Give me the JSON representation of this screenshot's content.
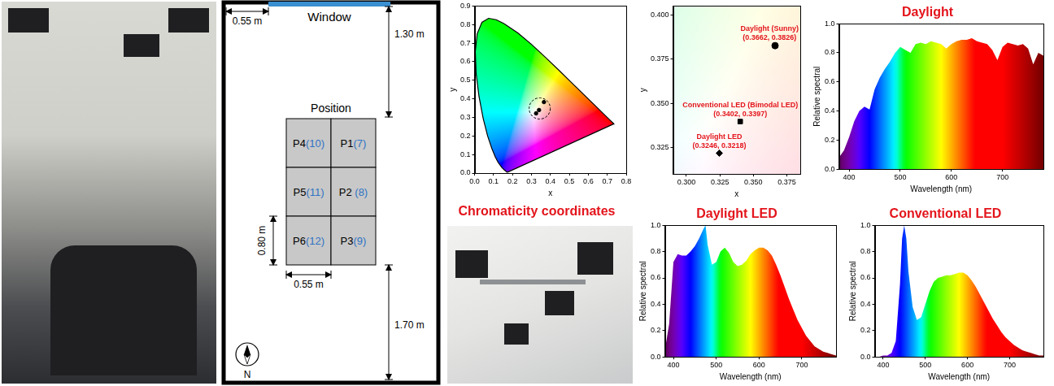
{
  "chart_data": [
    {
      "type": "scatter",
      "title": "Chromaticity coordinates",
      "xlabel": "x",
      "ylabel": "y",
      "xlim": [
        0,
        0.8
      ],
      "xticks": [
        {
          "value": 0,
          "label": "0.0"
        },
        0.1,
        0.2,
        0.3,
        0.4,
        0.5,
        0.6,
        0.7,
        0.8
      ],
      "ylim": [
        0,
        0.9
      ],
      "yticks": [
        {
          "value": 0,
          "label": "0.0"
        },
        0.1,
        0.2,
        0.3,
        0.4,
        0.5,
        0.6,
        0.7,
        0.8,
        0.9
      ],
      "grid": false,
      "series": [
        {
          "color": "#000000",
          "marker": "none",
          "line_style": "solid",
          "x": [
            0.1741,
            0.1714,
            0.1644,
            0.1566,
            0.144,
            0.1241,
            0.1096,
            0.0913,
            0.0687,
            0.0454,
            0.0235,
            0.0082,
            0.0039,
            0.0139,
            0.0389,
            0.0743,
            0.1142,
            0.1547,
            0.2296,
            0.3016,
            0.3731,
            0.4441,
            0.5125,
            0.5752,
            0.627,
            0.6915,
            0.719,
            0.732,
            0.7347
          ],
          "y": [
            0.005,
            0.0051,
            0.0109,
            0.0177,
            0.0297,
            0.0578,
            0.0868,
            0.1327,
            0.2007,
            0.295,
            0.4127,
            0.5384,
            0.6548,
            0.7502,
            0.812,
            0.8338,
            0.8262,
            0.8059,
            0.7543,
            0.6923,
            0.6245,
            0.5547,
            0.4866,
            0.4242,
            0.3725,
            0.3083,
            0.2809,
            0.268,
            0.2653
          ]
        },
        {
          "color": "#000000",
          "marker": "circle",
          "x": [
            0.3662,
            0.3402,
            0.3246
          ],
          "y": [
            0.3826,
            0.3397,
            0.3218
          ]
        }
      ]
    },
    {
      "type": "scatter",
      "xlabel": "x",
      "ylabel": "y",
      "xlim": [
        0.29,
        0.385
      ],
      "xticks": [
        {
          "value": 0.3,
          "label": "0.300"
        },
        0.325,
        {
          "value": 0.35,
          "label": "0.350"
        },
        0.375
      ],
      "ylim": [
        0.31,
        0.405
      ],
      "yticks": [
        0.325,
        {
          "value": 0.35,
          "label": "0.350"
        },
        0.375,
        {
          "value": 0.4,
          "label": "0.400"
        }
      ],
      "grid": false,
      "series": [
        {
          "name": "Daylight (Sunny)",
          "label": "(0.3662, 0.3826)",
          "color": "#000000",
          "marker": "circle",
          "x": [
            0.3662
          ],
          "y": [
            0.3826
          ]
        },
        {
          "name": "Conventional LED (Bimodal LED)",
          "label": "(0.3402, 0.3397)",
          "color": "#000000",
          "marker": "square",
          "x": [
            0.3402
          ],
          "y": [
            0.3397
          ]
        },
        {
          "name": "Daylight LED",
          "label": "(0.3246, 0.3218)",
          "color": "#000000",
          "marker": "diamond",
          "x": [
            0.3246
          ],
          "y": [
            0.3218
          ]
        }
      ]
    },
    {
      "type": "area",
      "title": "Daylight",
      "xlabel": "Wavelength (nm)",
      "ylabel": "Relative spectral",
      "xlim": [
        380,
        780
      ],
      "xticks": [
        400,
        500,
        600,
        700
      ],
      "ylim": [
        0,
        1
      ],
      "yticks": [
        {
          "value": 0,
          "label": "0.0"
        },
        0.2,
        0.4,
        0.6,
        0.8,
        {
          "value": 1,
          "label": "1.0"
        }
      ],
      "grid": false,
      "x": [
        380,
        390,
        400,
        410,
        420,
        430,
        440,
        450,
        460,
        470,
        480,
        490,
        500,
        510,
        520,
        530,
        540,
        550,
        560,
        570,
        580,
        590,
        600,
        610,
        620,
        630,
        640,
        650,
        660,
        670,
        680,
        690,
        700,
        710,
        720,
        730,
        740,
        750,
        760,
        770,
        780
      ],
      "values": [
        0.08,
        0.13,
        0.22,
        0.33,
        0.4,
        0.43,
        0.41,
        0.55,
        0.63,
        0.69,
        0.74,
        0.8,
        0.84,
        0.82,
        0.8,
        0.86,
        0.87,
        0.86,
        0.88,
        0.87,
        0.86,
        0.83,
        0.86,
        0.88,
        0.89,
        0.89,
        0.9,
        0.88,
        0.87,
        0.86,
        0.82,
        0.75,
        0.84,
        0.87,
        0.86,
        0.85,
        0.86,
        0.83,
        0.72,
        0.8,
        0.78
      ]
    },
    {
      "type": "area",
      "title": "Daylight LED",
      "xlabel": "Wavelength (nm)",
      "ylabel": "Relative spectral",
      "xlim": [
        380,
        780
      ],
      "xticks": [
        400,
        500,
        600,
        700
      ],
      "ylim": [
        0,
        1
      ],
      "yticks": [
        {
          "value": 0,
          "label": "0.0"
        },
        0.2,
        0.4,
        0.6,
        0.8,
        {
          "value": 1,
          "label": "1.0"
        }
      ],
      "grid": false,
      "x": [
        380,
        390,
        400,
        410,
        420,
        430,
        440,
        450,
        460,
        470,
        475,
        480,
        490,
        500,
        510,
        520,
        530,
        540,
        550,
        560,
        570,
        580,
        590,
        600,
        610,
        620,
        630,
        640,
        650,
        660,
        670,
        680,
        690,
        700,
        710,
        720,
        730,
        740,
        750,
        760,
        770,
        780
      ],
      "values": [
        0.05,
        0.25,
        0.72,
        0.78,
        0.77,
        0.77,
        0.8,
        0.84,
        0.9,
        0.97,
        1.0,
        0.85,
        0.7,
        0.72,
        0.8,
        0.83,
        0.79,
        0.72,
        0.69,
        0.7,
        0.73,
        0.78,
        0.81,
        0.83,
        0.83,
        0.81,
        0.77,
        0.7,
        0.62,
        0.53,
        0.44,
        0.36,
        0.28,
        0.22,
        0.16,
        0.12,
        0.08,
        0.06,
        0.04,
        0.03,
        0.02,
        0.01
      ]
    },
    {
      "type": "area",
      "title": "Conventional LED",
      "xlabel": "Wavelength (nm)",
      "ylabel": "Relative spectral",
      "xlim": [
        380,
        780
      ],
      "xticks": [
        400,
        500,
        600,
        700
      ],
      "ylim": [
        0,
        1
      ],
      "yticks": [
        {
          "value": 0,
          "label": "0.0"
        },
        0.2,
        0.4,
        0.6,
        0.8,
        {
          "value": 1,
          "label": "1.0"
        }
      ],
      "grid": false,
      "x": [
        380,
        390,
        400,
        410,
        420,
        430,
        440,
        445,
        450,
        455,
        460,
        470,
        480,
        490,
        500,
        510,
        520,
        530,
        540,
        550,
        560,
        570,
        580,
        590,
        600,
        610,
        620,
        630,
        640,
        650,
        660,
        670,
        680,
        690,
        700,
        710,
        720,
        730,
        740,
        750,
        760,
        770,
        780
      ],
      "values": [
        0,
        0,
        0.01,
        0.01,
        0.03,
        0.12,
        0.55,
        0.9,
        1.0,
        0.9,
        0.65,
        0.38,
        0.28,
        0.3,
        0.4,
        0.5,
        0.57,
        0.6,
        0.61,
        0.62,
        0.62,
        0.63,
        0.64,
        0.64,
        0.62,
        0.58,
        0.53,
        0.47,
        0.41,
        0.35,
        0.29,
        0.24,
        0.19,
        0.15,
        0.12,
        0.09,
        0.07,
        0.05,
        0.04,
        0.03,
        0.02,
        0.01,
        0.01
      ]
    }
  ],
  "floor_plan": {
    "window": "Window",
    "window_offset": "0.55 m",
    "top_distance": "1.30 m",
    "position_title": "Position",
    "positions": [
      [
        {
          "id": "P4",
          "tag": "(10)"
        },
        {
          "id": "P1",
          "tag": "(7)"
        }
      ],
      [
        {
          "id": "P5",
          "tag": "(11)"
        },
        {
          "id": "P2",
          "tag": " (8)"
        }
      ],
      [
        {
          "id": "P6",
          "tag": "(12)"
        },
        {
          "id": "P3",
          "tag": "(9)"
        }
      ]
    ],
    "cell_height": "0.80 m",
    "cell_width": "0.55 m",
    "bottom_distance": "1.70 m",
    "compass": "N"
  }
}
